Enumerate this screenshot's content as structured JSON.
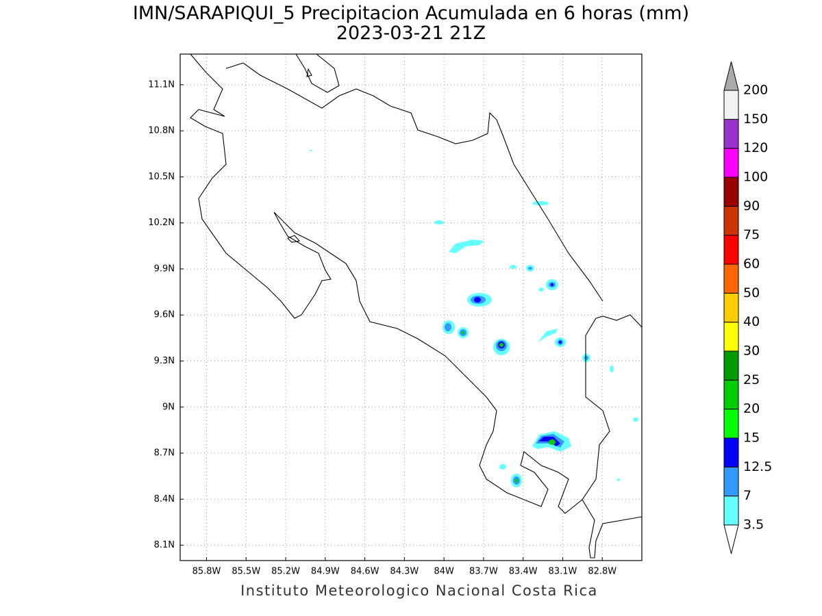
{
  "title": "IMN/SARAPIQUI_5 Precipitacion Acumulada en 6 horas (mm)",
  "subtitle": "2023-03-21 21Z",
  "footer": "Instituto Meteorologico Nacional Costa Rica",
  "map": {
    "xlim": [
      -86.0,
      -82.5
    ],
    "ylim": [
      8.0,
      11.3
    ],
    "xticks": [
      {
        "value": -85.8,
        "label": "85.8W"
      },
      {
        "value": -85.5,
        "label": "85.5W"
      },
      {
        "value": -85.2,
        "label": "85.2W"
      },
      {
        "value": -84.9,
        "label": "84.9W"
      },
      {
        "value": -84.6,
        "label": "84.6W"
      },
      {
        "value": -84.3,
        "label": "84.3W"
      },
      {
        "value": -84.0,
        "label": "84W"
      },
      {
        "value": -83.7,
        "label": "83.7W"
      },
      {
        "value": -83.4,
        "label": "83.4W"
      },
      {
        "value": -83.1,
        "label": "83.1W"
      },
      {
        "value": -82.8,
        "label": "82.8W"
      }
    ],
    "yticks": [
      {
        "value": 8.1,
        "label": "8.1N"
      },
      {
        "value": 8.4,
        "label": "8.4N"
      },
      {
        "value": 8.7,
        "label": "8.7N"
      },
      {
        "value": 9.0,
        "label": "9N"
      },
      {
        "value": 9.3,
        "label": "9.3N"
      },
      {
        "value": 9.6,
        "label": "9.6N"
      },
      {
        "value": 9.9,
        "label": "9.9N"
      },
      {
        "value": 10.2,
        "label": "10.2N"
      },
      {
        "value": 10.5,
        "label": "10.5N"
      },
      {
        "value": 10.8,
        "label": "10.8N"
      },
      {
        "value": 11.1,
        "label": "11.1N"
      }
    ],
    "grid": true
  },
  "colorbar": {
    "levels": [
      3.5,
      7,
      12.5,
      15,
      20,
      25,
      30,
      40,
      50,
      60,
      75,
      90,
      100,
      120,
      150,
      200
    ],
    "colors": [
      "#66ffff",
      "#3399ff",
      "#0000ff",
      "#00ff00",
      "#00cc00",
      "#009900",
      "#ffff00",
      "#ffcc00",
      "#ff6600",
      "#ff0000",
      "#cc3300",
      "#990000",
      "#ff00ff",
      "#9933cc",
      "#f2f2f2"
    ],
    "under_color": "#ffffff",
    "over_color": "#aaaaaa"
  }
}
